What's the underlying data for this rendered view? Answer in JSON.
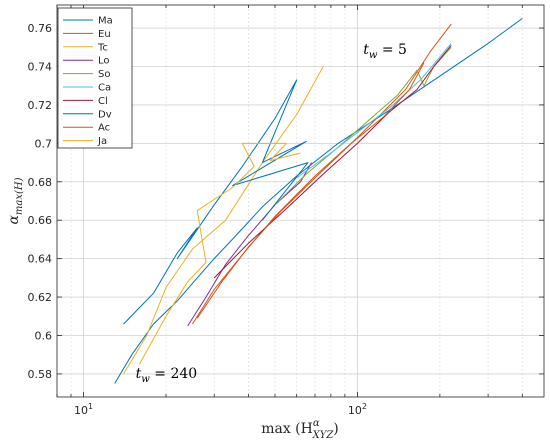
{
  "chart_data": {
    "type": "line",
    "xlabel_main": "max (H",
    "xlabel_sup": "α",
    "xlabel_sub": "XYZ",
    "xlabel_close": ")",
    "ylabel_main": "α",
    "ylabel_sub": "max(H)",
    "xscale": "log",
    "xlim": [
      8,
      480
    ],
    "ylim": [
      0.568,
      0.772
    ],
    "x_ticks": [
      {
        "value": 10,
        "base": "10",
        "exp": "1"
      },
      {
        "value": 100,
        "base": "10",
        "exp": "2"
      }
    ],
    "y_ticks": [
      0.58,
      0.6,
      0.62,
      0.64,
      0.66,
      0.68,
      0.7,
      0.72,
      0.74,
      0.76
    ],
    "grid": true,
    "legend_position": "top-left",
    "annotations": [
      {
        "text_var": "t",
        "text_sub": "w",
        "text_rest": " = 5",
        "x": 105,
        "y": 0.7465
      },
      {
        "text_var": "t",
        "text_sub": "w",
        "text_rest": " = 240",
        "x": 15.5,
        "y": 0.578
      }
    ],
    "series": [
      {
        "name": "Ma",
        "color": "#0072BD",
        "x": [
          13,
          15,
          18,
          22,
          26,
          30,
          36,
          45,
          60,
          85,
          130,
          200,
          300,
          400
        ],
        "y": [
          0.575,
          0.59,
          0.606,
          0.618,
          0.63,
          0.64,
          0.652,
          0.667,
          0.683,
          0.7,
          0.717,
          0.735,
          0.752,
          0.765
        ]
      },
      {
        "name": "Eu",
        "color": "#D95319",
        "x": [
          25,
          30,
          38,
          50,
          70,
          100,
          150,
          185,
          220
        ],
        "y": [
          0.606,
          0.624,
          0.642,
          0.662,
          0.683,
          0.703,
          0.728,
          0.748,
          0.762
        ]
      },
      {
        "name": "Tc",
        "color": "#EDB120",
        "x": [
          14,
          17,
          20,
          25,
          33,
          45,
          60,
          75
        ],
        "y": [
          0.58,
          0.6,
          0.625,
          0.645,
          0.66,
          0.69,
          0.715,
          0.74
        ]
      },
      {
        "name": "Lo",
        "color": "#7E2F8E",
        "x": [
          24,
          28,
          33,
          40,
          50,
          62,
          68
        ],
        "y": [
          0.605,
          0.62,
          0.637,
          0.652,
          0.668,
          0.68,
          0.69
        ]
      },
      {
        "name": "So",
        "color": "#77AC30",
        "x": [
          50,
          65,
          85,
          110,
          140,
          165,
          175,
          190,
          220
        ],
        "y": [
          0.668,
          0.684,
          0.698,
          0.712,
          0.725,
          0.738,
          0.73,
          0.74,
          0.75
        ]
      },
      {
        "name": "Ca",
        "color": "#4DBEEE",
        "x": [
          60,
          80,
          105,
          135,
          170,
          220
        ],
        "y": [
          0.682,
          0.695,
          0.708,
          0.72,
          0.733,
          0.752
        ]
      },
      {
        "name": "Cl",
        "color": "#A2142F",
        "x": [
          30,
          40,
          55,
          75,
          100,
          130,
          165,
          190,
          220
        ],
        "y": [
          0.63,
          0.648,
          0.666,
          0.684,
          0.7,
          0.716,
          0.728,
          0.74,
          0.751
        ]
      },
      {
        "name": "Dv",
        "color": "#0072BD",
        "x": [
          14,
          18,
          22,
          26,
          22,
          30,
          38,
          50,
          60,
          45,
          65,
          35,
          66,
          45
        ],
        "y": [
          0.606,
          0.622,
          0.643,
          0.656,
          0.64,
          0.668,
          0.688,
          0.713,
          0.733,
          0.69,
          0.701,
          0.678,
          0.69,
          0.66
        ]
      },
      {
        "name": "Ac",
        "color": "#D95319",
        "x": [
          26,
          32,
          40,
          52,
          70,
          95,
          125,
          155,
          175
        ],
        "y": [
          0.609,
          0.628,
          0.646,
          0.664,
          0.682,
          0.7,
          0.714,
          0.728,
          0.742
        ]
      },
      {
        "name": "Ja",
        "color": "#EDB120",
        "x": [
          16,
          20,
          24,
          28,
          26,
          35,
          42,
          38,
          55,
          48,
          62
        ],
        "y": [
          0.585,
          0.61,
          0.628,
          0.638,
          0.665,
          0.677,
          0.688,
          0.7,
          0.7,
          0.691,
          0.695
        ]
      }
    ]
  }
}
